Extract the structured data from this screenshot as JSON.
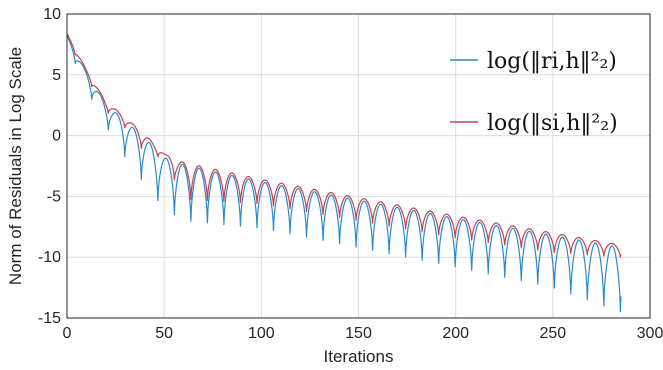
{
  "chart_data": {
    "type": "line",
    "title": "",
    "xlabel": "Iterations",
    "ylabel": "Norm of Residuals in Log Scale",
    "xlim": [
      0,
      300
    ],
    "ylim": [
      -15,
      10
    ],
    "xticks": [
      0,
      50,
      100,
      150,
      200,
      250,
      300
    ],
    "yticks": [
      -15,
      -10,
      -5,
      0,
      5,
      10
    ],
    "grid": true,
    "legend_position": "top-right",
    "series": [
      {
        "name": "log(‖r_{i,h}‖_2^2)",
        "legend_label": "log(‖ri,h‖²₂)",
        "color": "#2b8acb",
        "peak_envelope": [
          [
            0,
            8.2
          ],
          [
            10,
            5.2
          ],
          [
            20,
            2.6
          ],
          [
            30,
            1.2
          ],
          [
            40,
            -0.2
          ],
          [
            50,
            -1.8
          ],
          [
            60,
            -2.4
          ],
          [
            100,
            -3.8
          ],
          [
            150,
            -5.3
          ],
          [
            200,
            -6.8
          ],
          [
            250,
            -8.2
          ],
          [
            285,
            -9.2
          ]
        ],
        "trough_envelope": [
          [
            0,
            7.5
          ],
          [
            10,
            3.8
          ],
          [
            20,
            0.8
          ],
          [
            30,
            -1.8
          ],
          [
            40,
            -4.0
          ],
          [
            50,
            -6.0
          ],
          [
            60,
            -7.0
          ],
          [
            100,
            -7.6
          ],
          [
            150,
            -9.2
          ],
          [
            200,
            -10.8
          ],
          [
            250,
            -12.5
          ],
          [
            285,
            -14.5
          ]
        ],
        "oscillation_period": 8.5
      },
      {
        "name": "log(‖s_{i,h}‖_2^2)",
        "legend_label": "log(‖si,h‖²₂)",
        "color": "#c8404f",
        "peak_envelope": [
          [
            0,
            8.4
          ],
          [
            10,
            5.4
          ],
          [
            20,
            2.8
          ],
          [
            30,
            1.5
          ],
          [
            40,
            0.1
          ],
          [
            50,
            -1.5
          ],
          [
            60,
            -2.2
          ],
          [
            100,
            -3.6
          ],
          [
            150,
            -5.1
          ],
          [
            200,
            -6.6
          ],
          [
            250,
            -8.0
          ],
          [
            285,
            -9.0
          ]
        ],
        "trough_envelope": [
          [
            0,
            8.0
          ],
          [
            10,
            4.8
          ],
          [
            20,
            2.0
          ],
          [
            30,
            0.6
          ],
          [
            40,
            -1.4
          ],
          [
            50,
            -1.9
          ],
          [
            60,
            -5.2
          ],
          [
            100,
            -5.6
          ],
          [
            150,
            -7.0
          ],
          [
            200,
            -8.4
          ],
          [
            250,
            -9.6
          ],
          [
            285,
            -10.0
          ]
        ],
        "oscillation_period": 8.5
      }
    ]
  }
}
